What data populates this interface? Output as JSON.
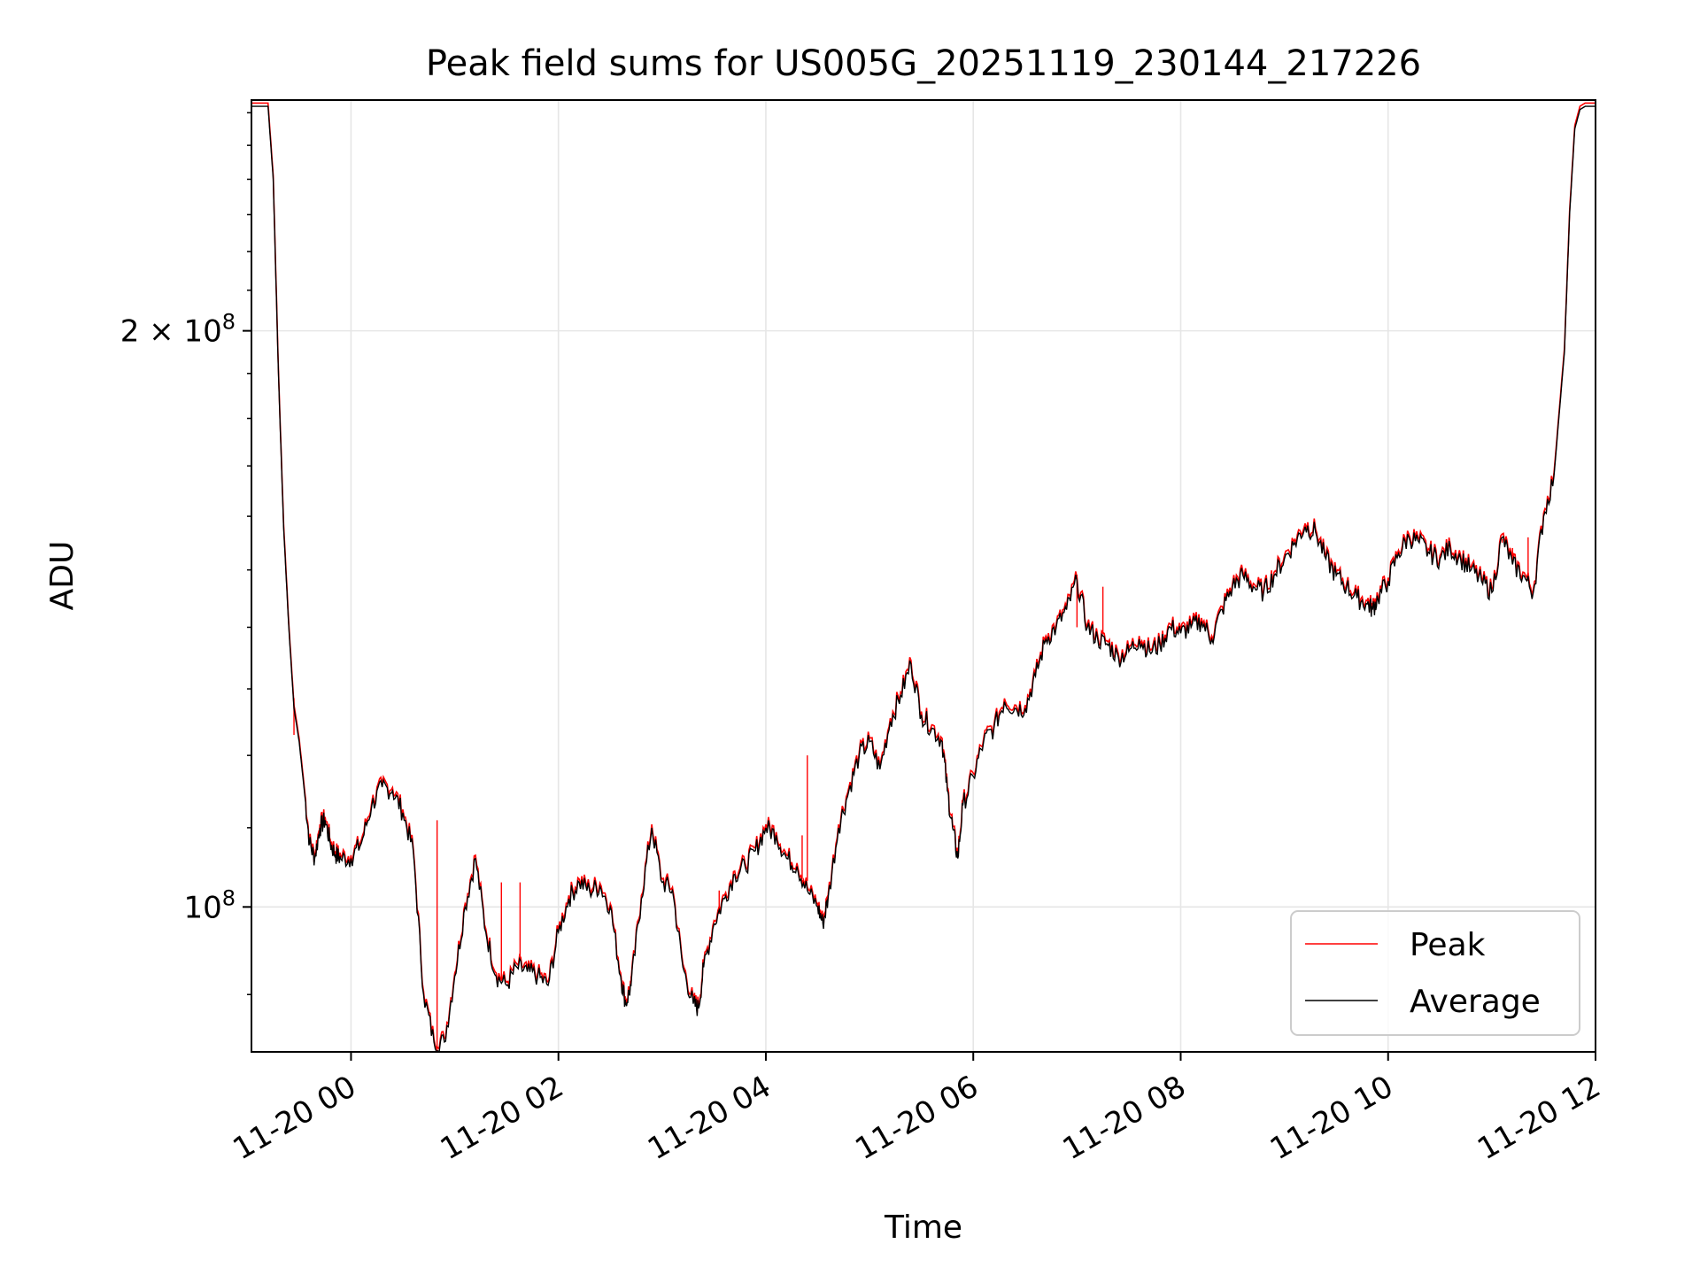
{
  "chart_data": {
    "type": "line",
    "title": "Peak field sums for US005G_20251119_230144_217226",
    "xlabel": "Time",
    "ylabel": "ADU",
    "yscale": "log",
    "xlim": [
      -0.96,
      12.0
    ],
    "ylim": [
      84000000,
      264000000
    ],
    "grid": true,
    "legend_position": "lower right",
    "x_ticks": [
      {
        "value": 0,
        "label": "11-20 00"
      },
      {
        "value": 2,
        "label": "11-20 02"
      },
      {
        "value": 4,
        "label": "11-20 04"
      },
      {
        "value": 6,
        "label": "11-20 06"
      },
      {
        "value": 8,
        "label": "11-20 08"
      },
      {
        "value": 10,
        "label": "11-20 10"
      },
      {
        "value": 12,
        "label": "11-20 12"
      }
    ],
    "y_ticks": [
      {
        "value": 100000000,
        "label_base": "10",
        "label_exp": "8"
      },
      {
        "value": 200000000,
        "label_base": "2 × 10",
        "label_exp": "8"
      }
    ],
    "x_unit": "hours since 11-20 00:00",
    "series": [
      {
        "name": "Peak",
        "color": "#ff0000",
        "spikes": [
          [
            -0.55,
            123000000.0
          ],
          [
            0.83,
            111000000.0
          ],
          [
            1.45,
            103000000.0
          ],
          [
            1.63,
            103000000.0
          ],
          [
            2.7,
            92000000.0
          ],
          [
            3.55,
            102000000.0
          ],
          [
            4.4,
            120000000.0
          ],
          [
            4.35,
            109000000.0
          ],
          [
            7.0,
            140000000.0
          ],
          [
            7.25,
            147000000.0
          ],
          [
            11.1,
            155000000.0
          ],
          [
            11.2,
            154000000.0
          ],
          [
            11.35,
            156000000.0
          ]
        ]
      },
      {
        "name": "Average",
        "color": "#000000"
      }
    ],
    "x": [
      -0.96,
      -0.8,
      -0.75,
      -0.7,
      -0.65,
      -0.6,
      -0.55,
      -0.5,
      -0.45,
      -0.4,
      -0.35,
      -0.3,
      -0.25,
      -0.2,
      -0.15,
      -0.1,
      0.0,
      0.1,
      0.2,
      0.3,
      0.4,
      0.5,
      0.6,
      0.7,
      0.8,
      0.9,
      1.0,
      1.1,
      1.2,
      1.3,
      1.4,
      1.5,
      1.6,
      1.7,
      1.8,
      1.9,
      2.0,
      2.1,
      2.2,
      2.3,
      2.4,
      2.5,
      2.6,
      2.65,
      2.7,
      2.8,
      2.9,
      3.0,
      3.1,
      3.2,
      3.3,
      3.35,
      3.4,
      3.5,
      3.6,
      3.7,
      3.8,
      3.9,
      4.0,
      4.1,
      4.2,
      4.3,
      4.4,
      4.5,
      4.55,
      4.6,
      4.7,
      4.8,
      4.9,
      5.0,
      5.1,
      5.2,
      5.3,
      5.4,
      5.5,
      5.6,
      5.7,
      5.75,
      5.8,
      5.85,
      5.9,
      6.0,
      6.1,
      6.2,
      6.3,
      6.4,
      6.5,
      6.6,
      6.7,
      6.8,
      6.9,
      7.0,
      7.1,
      7.2,
      7.3,
      7.4,
      7.5,
      7.6,
      7.7,
      7.8,
      7.9,
      8.0,
      8.1,
      8.2,
      8.3,
      8.4,
      8.5,
      8.6,
      8.7,
      8.8,
      8.9,
      9.0,
      9.1,
      9.2,
      9.3,
      9.4,
      9.5,
      9.6,
      9.7,
      9.8,
      9.85,
      9.9,
      10.0,
      10.1,
      10.2,
      10.3,
      10.4,
      10.5,
      10.6,
      10.7,
      10.8,
      10.9,
      11.0,
      11.1,
      11.2,
      11.3,
      11.4,
      11.5,
      11.6,
      11.7,
      11.75,
      11.8,
      11.85,
      11.9,
      12.0
    ],
    "values": [
      262000000,
      262000000,
      240000000,
      190000000,
      158000000,
      140000000,
      127000000,
      122000000,
      115000000,
      108000000,
      106000000,
      110000000,
      111000000,
      108000000,
      106500000,
      106000000,
      106000000,
      108000000,
      113000000,
      115500000,
      115000000,
      112000000,
      107000000,
      90000000,
      85000000,
      85000000,
      92000000,
      100000000,
      106000000,
      97000000,
      92000000,
      91000000,
      93000000,
      92500000,
      92000000,
      91000000,
      97000000,
      101000000,
      103000000,
      102000000,
      102500000,
      100000000,
      92000000,
      89000000,
      91000000,
      101000000,
      110000000,
      103000000,
      102000000,
      93000000,
      89000000,
      88500000,
      93000000,
      98000000,
      101000000,
      104000000,
      105000000,
      107000000,
      110000000,
      109000000,
      106000000,
      105000000,
      102000000,
      100000000,
      98000000,
      101000000,
      110000000,
      115000000,
      120000000,
      122000000,
      118000000,
      125000000,
      129000000,
      134000000,
      126000000,
      124000000,
      122000000,
      115000000,
      110000000,
      106000000,
      113000000,
      117000000,
      122000000,
      124000000,
      128000000,
      127000000,
      127000000,
      132000000,
      138000000,
      140000000,
      143000000,
      148000000,
      140000000,
      138000000,
      137000000,
      135000000,
      136000000,
      138000000,
      136000000,
      137000000,
      140000000,
      139000000,
      140000000,
      141000000,
      138000000,
      143000000,
      147000000,
      149000000,
      147000000,
      146000000,
      149000000,
      152000000,
      155000000,
      158000000,
      157000000,
      152000000,
      149000000,
      147000000,
      145000000,
      144000000,
      143000000,
      145000000,
      148000000,
      153000000,
      156000000,
      155000000,
      153000000,
      152000000,
      154000000,
      152000000,
      150000000,
      148000000,
      146000000,
      156000000,
      151000000,
      149000000,
      146000000,
      160000000,
      168000000,
      195000000,
      230000000,
      255000000,
      261000000,
      262000000,
      262000000
    ]
  }
}
